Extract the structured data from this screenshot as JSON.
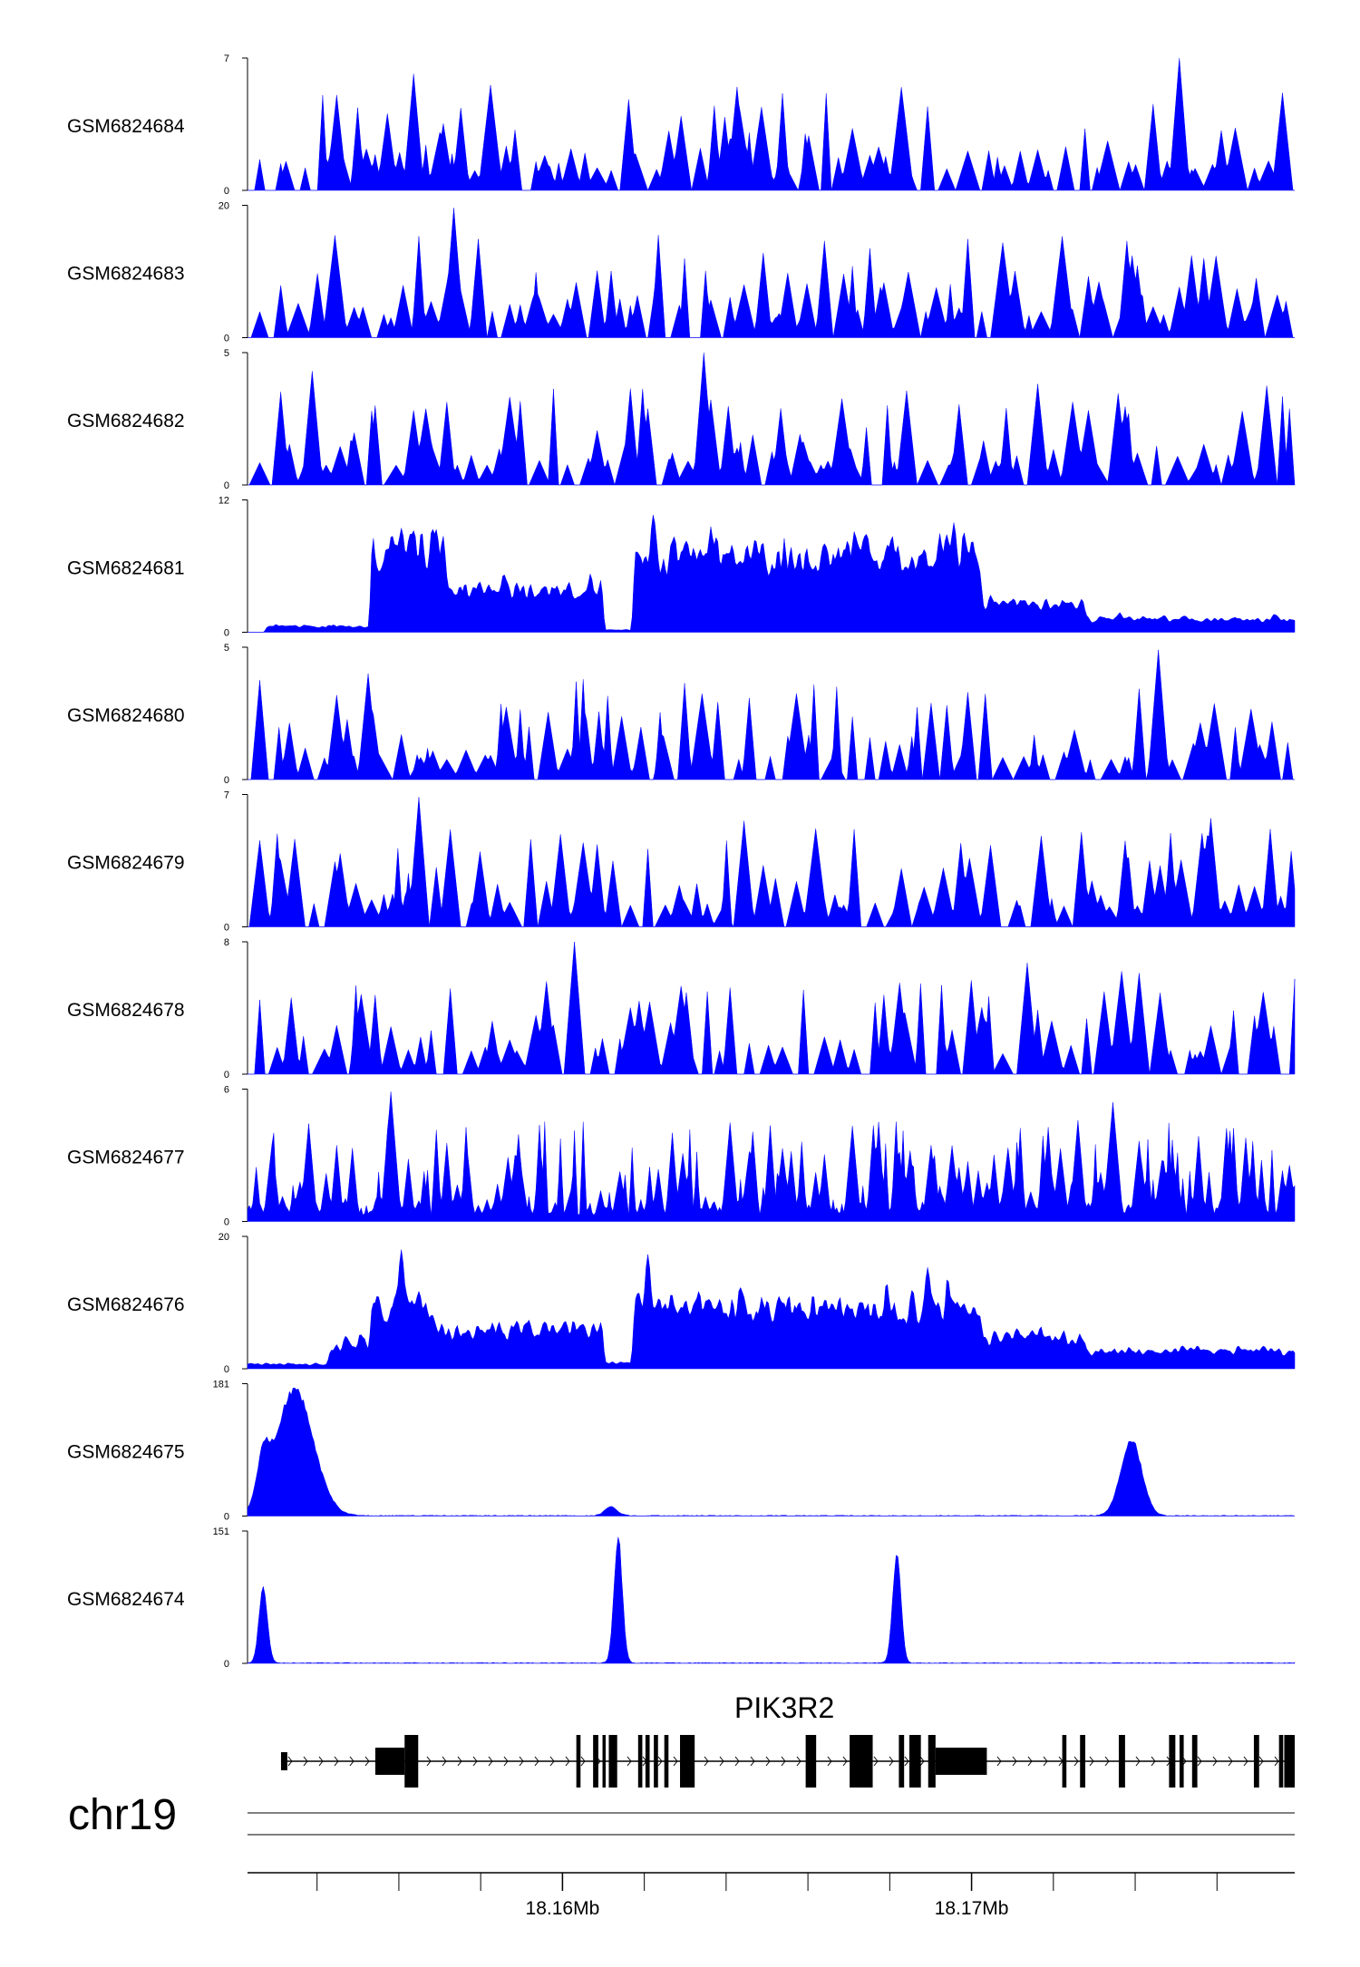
{
  "chart_data": {
    "type": "area",
    "chromosome": "chr19",
    "gene": "PIK3R2",
    "x_range": [
      18.1523,
      18.1779
    ],
    "x_tick_labels": [
      "18.16Mb",
      "18.17Mb"
    ],
    "x_ticks_mb": [
      18.16,
      18.17
    ],
    "fill_color": "#0000FF",
    "tracks": [
      {
        "name": "GSM6824684",
        "ylim": [
          0,
          7
        ],
        "ymax_label": "7",
        "ymin_label": "0",
        "shape": "sparse",
        "seed": 684,
        "peaks": [
          [
            0.085,
            0.72
          ],
          [
            0.158,
            0.88
          ],
          [
            0.89,
            1.0
          ]
        ]
      },
      {
        "name": "GSM6824683",
        "ylim": [
          0,
          20
        ],
        "ymax_label": "20",
        "ymin_label": "0",
        "shape": "sparse",
        "seed": 683,
        "peaks": [
          [
            0.197,
            0.98
          ],
          [
            0.845,
            0.62
          ]
        ]
      },
      {
        "name": "GSM6824682",
        "ylim": [
          0,
          5
        ],
        "ymax_label": "5",
        "ymin_label": "0",
        "shape": "sparse",
        "seed": 682,
        "peaks": [
          [
            0.435,
            1.0
          ],
          [
            0.062,
            0.86
          ],
          [
            0.974,
            0.75
          ]
        ]
      },
      {
        "name": "GSM6824681",
        "ylim": [
          0,
          12
        ],
        "ymax_label": "12",
        "ymin_label": "0",
        "shape": "broad",
        "seed": 681,
        "regions": [
          [
            0.02,
            0.12,
            0.05
          ],
          [
            0.12,
            0.19,
            0.22
          ],
          [
            0.12,
            0.19,
            0.75
          ],
          [
            0.19,
            0.34,
            0.38
          ],
          [
            0.34,
            0.37,
            0.02
          ],
          [
            0.37,
            0.7,
            0.7
          ],
          [
            0.7,
            0.8,
            0.25
          ],
          [
            0.8,
            1.0,
            0.12
          ]
        ],
        "peaks": [
          [
            0.388,
            0.98
          ],
          [
            0.674,
            0.92
          ]
        ]
      },
      {
        "name": "GSM6824680",
        "ylim": [
          0,
          5
        ],
        "ymax_label": "5",
        "ymin_label": "0",
        "shape": "sparse",
        "seed": 680,
        "peaks": [
          [
            0.87,
            0.98
          ],
          [
            0.115,
            0.8
          ]
        ]
      },
      {
        "name": "GSM6824679",
        "ylim": [
          0,
          7
        ],
        "ymax_label": "7",
        "ymin_label": "0",
        "shape": "sparse",
        "seed": 679,
        "peaks": [
          [
            0.164,
            0.98
          ],
          [
            0.474,
            0.8
          ],
          [
            0.92,
            0.82
          ]
        ]
      },
      {
        "name": "GSM6824678",
        "ylim": [
          0,
          8
        ],
        "ymax_label": "8",
        "ymin_label": "0",
        "shape": "sparse",
        "seed": 678,
        "peaks": [
          [
            0.312,
            1.0
          ],
          [
            0.285,
            0.7
          ],
          [
            0.744,
            0.84
          ]
        ]
      },
      {
        "name": "GSM6824677",
        "ylim": [
          0,
          6
        ],
        "ymax_label": "6",
        "ymin_label": "0",
        "shape": "dense",
        "seed": 677,
        "peaks": [
          [
            0.137,
            0.98
          ],
          [
            0.827,
            0.9
          ]
        ]
      },
      {
        "name": "GSM6824676",
        "ylim": [
          0,
          20
        ],
        "ymax_label": "20",
        "ymin_label": "0",
        "shape": "broad",
        "seed": 676,
        "regions": [
          [
            0.0,
            0.08,
            0.04
          ],
          [
            0.08,
            0.12,
            0.22
          ],
          [
            0.12,
            0.18,
            0.55
          ],
          [
            0.18,
            0.34,
            0.35
          ],
          [
            0.34,
            0.37,
            0.05
          ],
          [
            0.37,
            0.7,
            0.55
          ],
          [
            0.7,
            0.8,
            0.28
          ],
          [
            0.8,
            1.0,
            0.16
          ]
        ],
        "peaks": [
          [
            0.147,
            1.0
          ],
          [
            0.382,
            0.96
          ],
          [
            0.65,
            0.85
          ]
        ]
      },
      {
        "name": "GSM6824675",
        "ylim": [
          0,
          181
        ],
        "ymax_label": "181",
        "ymin_label": "0",
        "shape": "peaks",
        "seed": 675,
        "peaks": [
          [
            0.045,
            0.98,
            0.018
          ],
          [
            0.015,
            0.33,
            0.006
          ],
          [
            0.844,
            0.6,
            0.01
          ],
          [
            0.347,
            0.07,
            0.006
          ]
        ]
      },
      {
        "name": "GSM6824674",
        "ylim": [
          0,
          151
        ],
        "ymax_label": "151",
        "ymin_label": "0",
        "shape": "peaks",
        "seed": 674,
        "peaks": [
          [
            0.354,
            0.97,
            0.004
          ],
          [
            0.62,
            0.84,
            0.004
          ],
          [
            0.015,
            0.6,
            0.004
          ]
        ]
      }
    ],
    "gene_model": {
      "strand": "+",
      "line_range": [
        0.032,
        1.0
      ],
      "exons": [
        [
          0.032,
          0.038,
          "thin"
        ],
        [
          0.122,
          0.15,
          "thick"
        ],
        [
          0.15,
          0.163,
          "tall"
        ],
        [
          0.314,
          0.318,
          "tall"
        ],
        [
          0.33,
          0.335,
          "tall"
        ],
        [
          0.339,
          0.342,
          "tall"
        ],
        [
          0.345,
          0.353,
          "tall"
        ],
        [
          0.373,
          0.377,
          "tall"
        ],
        [
          0.38,
          0.384,
          "tall"
        ],
        [
          0.388,
          0.392,
          "tall"
        ],
        [
          0.398,
          0.402,
          "tall"
        ],
        [
          0.413,
          0.427,
          "tall"
        ],
        [
          0.533,
          0.543,
          "tall"
        ],
        [
          0.575,
          0.597,
          "tall"
        ],
        [
          0.622,
          0.627,
          "tall"
        ],
        [
          0.632,
          0.643,
          "tall"
        ],
        [
          0.65,
          0.657,
          "tall"
        ],
        [
          0.657,
          0.706,
          "thick"
        ],
        [
          0.778,
          0.782,
          "tall"
        ],
        [
          0.795,
          0.8,
          "tall"
        ],
        [
          0.832,
          0.838,
          "tall"
        ],
        [
          0.88,
          0.886,
          "tall"
        ],
        [
          0.89,
          0.894,
          "tall"
        ],
        [
          0.902,
          0.907,
          "tall"
        ],
        [
          0.961,
          0.966,
          "tall"
        ],
        [
          0.985,
          0.989,
          "tall"
        ],
        [
          0.99,
          1.0,
          "tall"
        ]
      ]
    }
  }
}
